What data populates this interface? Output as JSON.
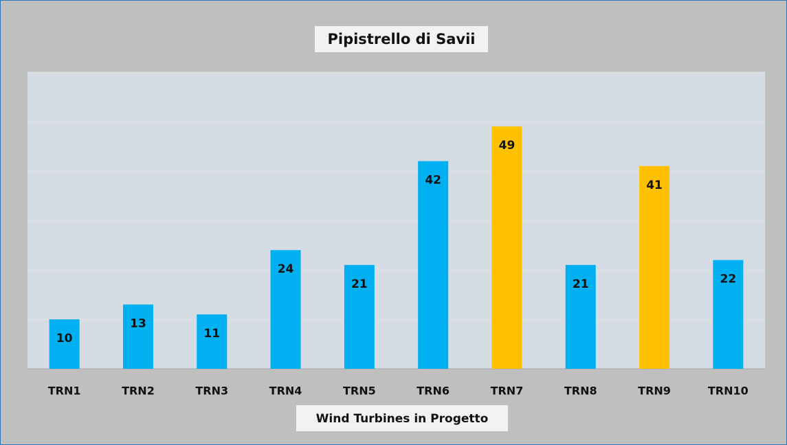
{
  "chart_data": {
    "type": "bar",
    "title": "Pipistrello di Savii",
    "x_label": "Wind Turbines in Progetto",
    "categories": [
      "TRN1",
      "TRN2",
      "TRN3",
      "TRN4",
      "TRN5",
      "TRN6",
      "TRN7",
      "TRN8",
      "TRN9",
      "TRN10"
    ],
    "values": [
      10,
      13,
      11,
      24,
      21,
      42,
      49,
      21,
      41,
      22
    ],
    "colors": [
      "#00b0f0",
      "#00b0f0",
      "#00b0f0",
      "#00b0f0",
      "#00b0f0",
      "#00b0f0",
      "#ffc000",
      "#00b0f0",
      "#ffc000",
      "#00b0f0"
    ],
    "ylim": [
      0,
      60
    ],
    "yticks": [
      0,
      10,
      20,
      30,
      40,
      50,
      60
    ],
    "grid": true
  }
}
